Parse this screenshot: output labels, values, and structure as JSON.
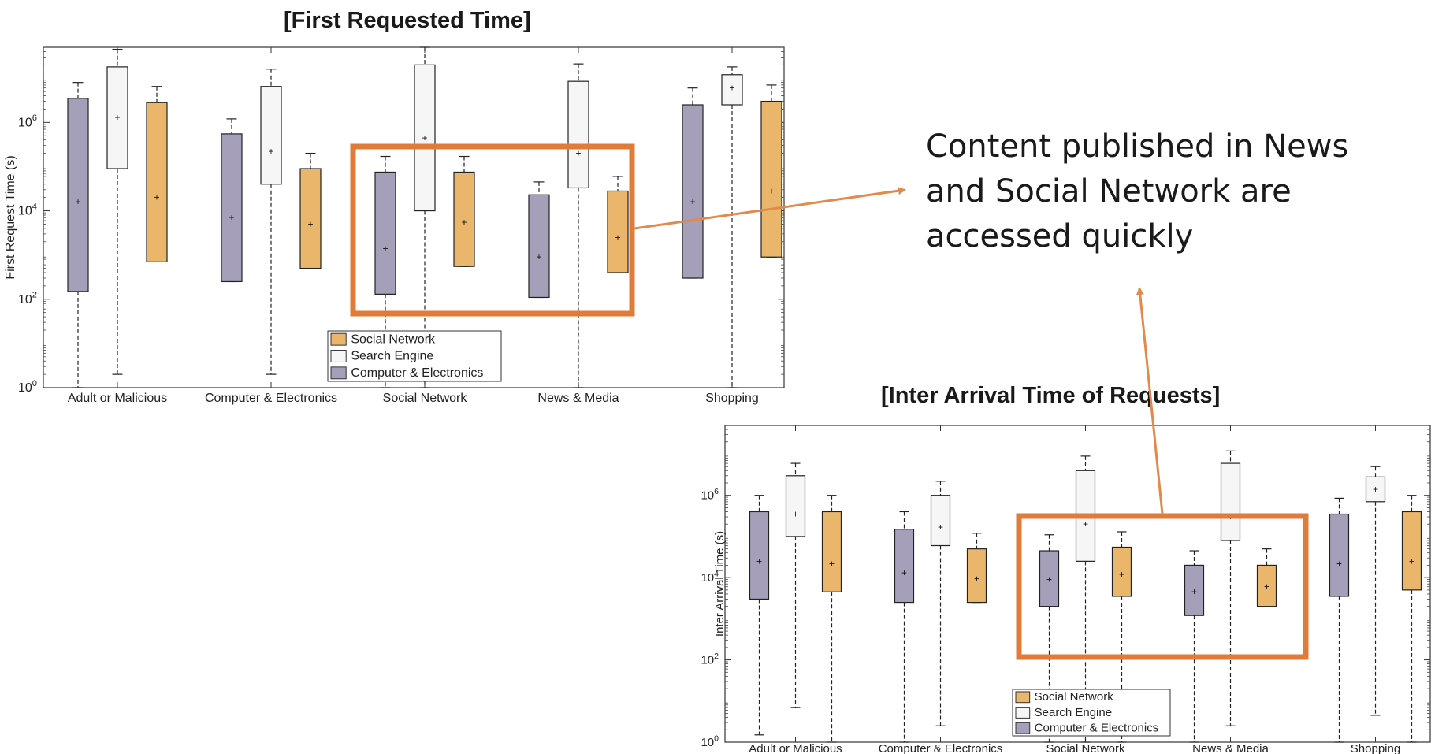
{
  "titles": {
    "first_requested": "[First Requested Time]",
    "inter_arrival": "[Inter Arrival Time of Requests]"
  },
  "callout": "Content published in News and Social Network are accessed quickly",
  "colors": {
    "Computer & Electronics": "#a59fb9",
    "Search Engine": "#f6f6f6",
    "Social Network": "#e9b66b",
    "highlight": "#e07b39",
    "arrow": "#e08a4c"
  },
  "chart_data": [
    {
      "type": "box",
      "title": "[First Requested Time]",
      "ylabel": "First Request Time (s)",
      "yscale": "log",
      "ylim": [
        1,
        50000000
      ],
      "yticks": [
        1,
        100,
        10000,
        1000000
      ],
      "ytick_labels": [
        [
          "10",
          "0"
        ],
        [
          "10",
          "2"
        ],
        [
          "10",
          "4"
        ],
        [
          "10",
          "6"
        ]
      ],
      "categories": [
        "Adult or Malicious",
        "Computer & Electronics",
        "Social Network",
        "News & Media",
        "Shopping"
      ],
      "legend": [
        "Social Network",
        "Search Engine",
        "Computer & Electronics"
      ],
      "legend_position": "bottom-center",
      "series": [
        {
          "name": "Computer & Electronics",
          "boxes": [
            {
              "whislo": 1,
              "q1": 150,
              "med": 16000,
              "q3": 3500000,
              "whishi": 8000000
            },
            {
              "whislo": 250,
              "q1": 250,
              "med": 7000,
              "q3": 550000,
              "whishi": 1200000
            },
            {
              "whislo": 1,
              "q1": 130,
              "med": 1400,
              "q3": 75000,
              "whishi": 170000
            },
            {
              "whislo": 110,
              "q1": 110,
              "med": 900,
              "q3": 23000,
              "whishi": 45000
            },
            {
              "whislo": 300,
              "q1": 300,
              "med": 16000,
              "q3": 2500000,
              "whishi": 6000000
            }
          ]
        },
        {
          "name": "Search Engine",
          "boxes": [
            {
              "whislo": 2,
              "q1": 90000,
              "med": 1300000,
              "q3": 18000000,
              "whishi": 45000000
            },
            {
              "whislo": 2,
              "q1": 40000,
              "med": 220000,
              "q3": 6500000,
              "whishi": 16000000
            },
            {
              "whislo": 1,
              "q1": 10000,
              "med": 450000,
              "q3": 20000000,
              "whishi": 50000000
            },
            {
              "whislo": 1,
              "q1": 33000,
              "med": 200000,
              "q3": 8500000,
              "whishi": 21000000
            },
            {
              "whislo": 1,
              "q1": 2500000,
              "med": 6000000,
              "q3": 12000000,
              "whishi": 18000000
            }
          ]
        },
        {
          "name": "Social Network",
          "boxes": [
            {
              "whislo": 700,
              "q1": 700,
              "med": 20000,
              "q3": 2800000,
              "whishi": 6500000
            },
            {
              "whislo": 500,
              "q1": 500,
              "med": 5000,
              "q3": 90000,
              "whishi": 200000
            },
            {
              "whislo": 550,
              "q1": 550,
              "med": 5500,
              "q3": 75000,
              "whishi": 170000
            },
            {
              "whislo": 400,
              "q1": 400,
              "med": 2500,
              "q3": 28000,
              "whishi": 60000
            },
            {
              "whislo": 900,
              "q1": 900,
              "med": 28000,
              "q3": 3000000,
              "whishi": 7000000
            }
          ]
        }
      ]
    },
    {
      "type": "box",
      "title": "[Inter Arrival Time of Requests]",
      "ylabel": "Inter Arrival Time (s)",
      "yscale": "log",
      "ylim": [
        1,
        50000000
      ],
      "yticks": [
        1,
        100,
        10000,
        1000000
      ],
      "ytick_labels": [
        [
          "10",
          "0"
        ],
        [
          "10",
          "2"
        ],
        [
          "10",
          "4"
        ],
        [
          "10",
          "6"
        ]
      ],
      "categories": [
        "Adult or Malicious",
        "Computer & Electronics",
        "Social Network",
        "News & Media",
        "Shopping"
      ],
      "legend": [
        "Social Network",
        "Search Engine",
        "Computer & Electronics"
      ],
      "legend_position": "bottom-left",
      "series": [
        {
          "name": "Computer & Electronics",
          "boxes": [
            {
              "whislo": 1.5,
              "q1": 3000,
              "med": 25000,
              "q3": 400000,
              "whishi": 1000000
            },
            {
              "whislo": 1,
              "q1": 2500,
              "med": 13000,
              "q3": 150000,
              "whishi": 400000
            },
            {
              "whislo": 1,
              "q1": 2000,
              "med": 9000,
              "q3": 45000,
              "whishi": 110000
            },
            {
              "whislo": 1,
              "q1": 1200,
              "med": 4500,
              "q3": 20000,
              "whishi": 45000
            },
            {
              "whislo": 1,
              "q1": 3500,
              "med": 22000,
              "q3": 350000,
              "whishi": 850000
            }
          ]
        },
        {
          "name": "Search Engine",
          "boxes": [
            {
              "whislo": 7,
              "q1": 100000,
              "med": 350000,
              "q3": 3000000,
              "whishi": 6000000
            },
            {
              "whislo": 2.5,
              "q1": 60000,
              "med": 170000,
              "q3": 1000000,
              "whishi": 2200000
            },
            {
              "whislo": 1,
              "q1": 25000,
              "med": 200000,
              "q3": 4000000,
              "whishi": 9000000
            },
            {
              "whislo": 2.5,
              "q1": 80000,
              "med": 300000,
              "q3": 6000000,
              "whishi": 12000000
            },
            {
              "whislo": 4.5,
              "q1": 700000,
              "med": 1400000,
              "q3": 2800000,
              "whishi": 5000000
            }
          ]
        },
        {
          "name": "Social Network",
          "boxes": [
            {
              "whislo": 1,
              "q1": 4500,
              "med": 22000,
              "q3": 400000,
              "whishi": 1000000
            },
            {
              "whislo": 2500,
              "q1": 2500,
              "med": 9500,
              "q3": 50000,
              "whishi": 120000
            },
            {
              "whislo": 1,
              "q1": 3500,
              "med": 12000,
              "q3": 55000,
              "whishi": 130000
            },
            {
              "whislo": 2000,
              "q1": 2000,
              "med": 6000,
              "q3": 20000,
              "whishi": 50000
            },
            {
              "whislo": 1,
              "q1": 5000,
              "med": 25000,
              "q3": 400000,
              "whishi": 1000000
            }
          ]
        }
      ]
    }
  ]
}
